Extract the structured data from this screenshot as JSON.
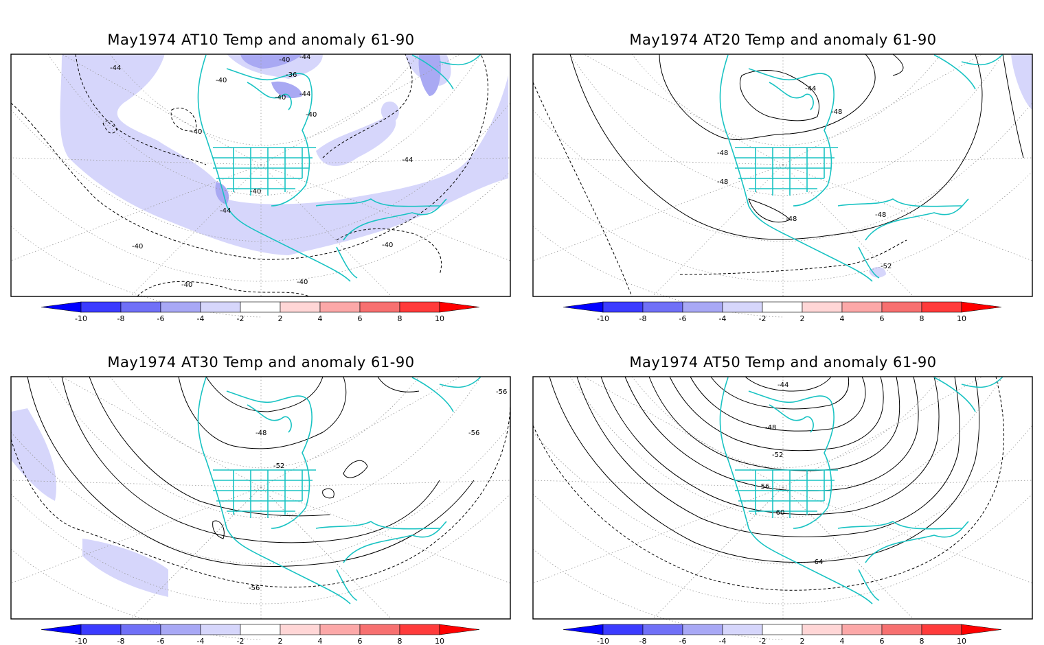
{
  "panels": [
    {
      "title": "May1974 AT10 Temp and anomaly 61-90",
      "contour_labels": [
        "-44",
        "-40",
        "-40",
        "-36",
        "-44",
        "-40",
        "-40",
        "-40",
        "-44",
        "-44",
        "-40",
        "-44",
        "-40",
        "-40",
        "-40",
        "-40"
      ]
    },
    {
      "title": "May1974 AT20 Temp and anomaly 61-90",
      "contour_labels": [
        "-44",
        "-48",
        "-48",
        "-48",
        "-48",
        "-48",
        "-52"
      ]
    },
    {
      "title": "May1974 AT30 Temp and anomaly 61-90",
      "contour_labels": [
        "-56",
        "-48",
        "-56",
        "-52",
        "-56"
      ]
    },
    {
      "title": "May1974 AT50 Temp and anomaly 61-90",
      "contour_labels": [
        "-44",
        "-48",
        "-52",
        "-56",
        "-60",
        "-64"
      ]
    }
  ],
  "colorbar": {
    "labels": [
      "-10",
      "-8",
      "-6",
      "-4",
      "-2",
      "2",
      "4",
      "6",
      "8",
      "10"
    ],
    "colors": [
      "#0000ff",
      "#3b3bff",
      "#7070f7",
      "#a8a8f5",
      "#d6d6fb",
      "#ffffff",
      "#ffd6d6",
      "#fca8a8",
      "#f77070",
      "#ff3b3b",
      "#ff0000"
    ]
  }
}
